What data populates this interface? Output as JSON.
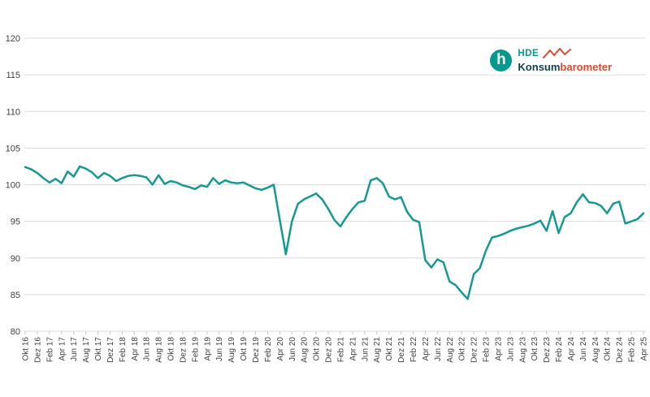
{
  "logo": {
    "circle_letter": "h",
    "hde": "HDE",
    "konsum": "Konsum",
    "barometer": "barometer"
  },
  "colors": {
    "line": "#149A90",
    "grid": "#D9D9D9",
    "tick": "#C8C8C8",
    "axis_text": "#404040",
    "logo_teal": "#009B8E",
    "logo_dark": "#123F4D",
    "logo_red": "#E0452F"
  },
  "chart_data": {
    "type": "line",
    "title": "",
    "xlabel": "",
    "ylabel": "",
    "ylim": [
      80,
      120
    ],
    "yticks": [
      "120",
      "115",
      "110",
      "105",
      "100",
      "95",
      "90",
      "85",
      "80"
    ],
    "grid": "horizontal-only",
    "legend": "none",
    "x_tick_labels": [
      "Okt 16",
      "Dez 16",
      "Feb 17",
      "Apr 17",
      "Jun 17",
      "Aug 17",
      "Okt 17",
      "Dez 17",
      "Feb 18",
      "Apr 18",
      "Jun 18",
      "Aug 18",
      "Okt 18",
      "Dez 18",
      "Feb 19",
      "Apr 19",
      "Jun 19",
      "Aug 19",
      "Okt 19",
      "Dez 19",
      "Feb 20",
      "Apr 20",
      "Jun 20",
      "Aug 20",
      "Okt 20",
      "Dez 20",
      "Feb 21",
      "Apr 21",
      "Jun 21",
      "Aug 21",
      "Okt 21",
      "Dez 21",
      "Feb 22",
      "Apr 22",
      "Jun 22",
      "Aug 22",
      "Okt 22",
      "Dez 22",
      "Feb 23",
      "Apr 23",
      "Jun 23",
      "Aug 23",
      "Okt 23",
      "Dez 23",
      "Feb 24",
      "Apr 24",
      "Jun 24",
      "Aug 24",
      "Okt 24",
      "Dez 24",
      "Feb 25",
      "Apr 25"
    ],
    "points_per_tick": 2,
    "series": [
      {
        "name": "HDE Konsumbarometer",
        "values": [
          102.4,
          102.1,
          101.6,
          100.9,
          100.3,
          100.8,
          100.2,
          101.8,
          101.1,
          102.5,
          102.2,
          101.7,
          100.9,
          101.6,
          101.2,
          100.5,
          100.9,
          101.2,
          101.3,
          101.2,
          101.0,
          100.0,
          101.3,
          100.1,
          100.5,
          100.3,
          99.9,
          99.7,
          99.4,
          99.9,
          99.7,
          100.9,
          100.1,
          100.6,
          100.3,
          100.2,
          100.3,
          99.9,
          99.5,
          99.3,
          99.6,
          100.0,
          95.2,
          90.5,
          95.0,
          97.4,
          98.0,
          98.4,
          98.8,
          98.0,
          96.7,
          95.2,
          94.3,
          95.6,
          96.7,
          97.6,
          97.8,
          100.6,
          100.9,
          100.2,
          98.4,
          98.0,
          98.3,
          96.3,
          95.2,
          94.9,
          89.7,
          88.7,
          89.8,
          89.4,
          86.8,
          86.3,
          85.3,
          84.4,
          87.8,
          88.6,
          91.0,
          92.8,
          93.0,
          93.3,
          93.7,
          94.0,
          94.2,
          94.4,
          94.7,
          95.1,
          93.7,
          96.4,
          93.4,
          95.6,
          96.1,
          97.6,
          98.7,
          97.6,
          97.5,
          97.1,
          96.1,
          97.4,
          97.7,
          94.7,
          95.0,
          95.3,
          96.1
        ]
      }
    ]
  }
}
